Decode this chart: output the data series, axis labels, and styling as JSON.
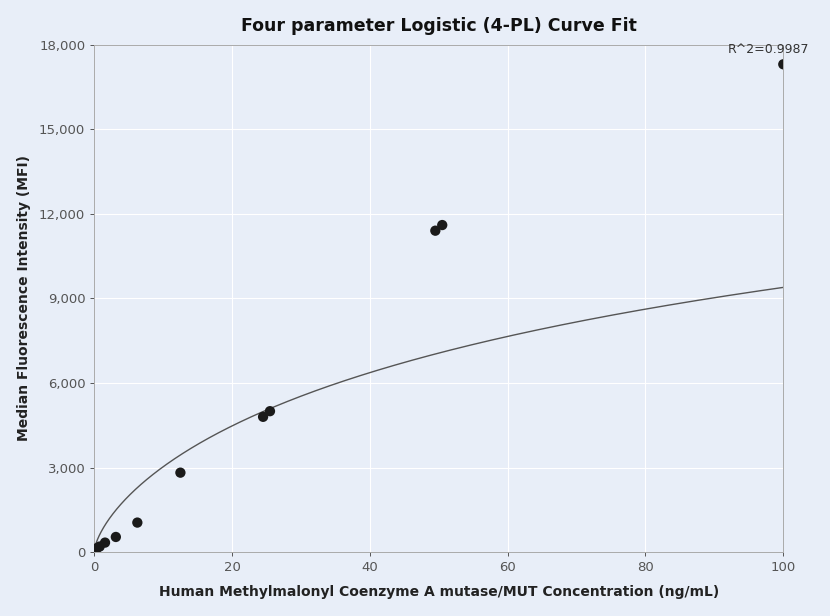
{
  "title": "Four parameter Logistic (4-PL) Curve Fit",
  "xlabel": "Human Methylmalonyl Coenzyme A mutase/MUT Concentration (ng/mL)",
  "ylabel": "Median Fluorescence Intensity (MFI)",
  "scatter_x": [
    0.39,
    0.78,
    1.56,
    3.13,
    6.25,
    12.5,
    24.5,
    25.5,
    49.5,
    50.5,
    100.0
  ],
  "scatter_y": [
    145,
    200,
    340,
    540,
    1050,
    2820,
    4800,
    5000,
    11400,
    11600,
    17300
  ],
  "dot_color": "#1a1a1a",
  "dot_size": 55,
  "line_color": "#555555",
  "r_squared": "R^2=0.9987",
  "xlim": [
    0,
    100
  ],
  "ylim": [
    0,
    18000
  ],
  "yticks": [
    0,
    3000,
    6000,
    9000,
    12000,
    15000,
    18000
  ],
  "xticks": [
    0,
    20,
    40,
    60,
    80,
    100
  ],
  "bg_color": "#e8eef8",
  "grid_color": "#ffffff",
  "spine_color": "#aaaaaa"
}
